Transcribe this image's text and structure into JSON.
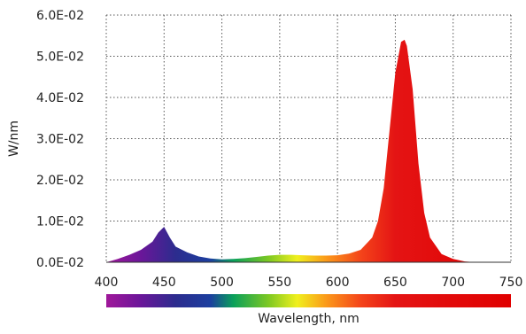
{
  "chart_data": {
    "type": "area",
    "title": "",
    "xlabel": "Wavelength, nm",
    "ylabel": "W/nm",
    "xlim": [
      400,
      750
    ],
    "ylim": [
      0.0,
      0.06
    ],
    "x_ticks": [
      400,
      450,
      500,
      550,
      600,
      650,
      700,
      750
    ],
    "x_tick_labels": [
      "400",
      "450",
      "500",
      "550",
      "600",
      "650",
      "700",
      "750"
    ],
    "y_ticks": [
      0.0,
      0.01,
      0.02,
      0.03,
      0.04,
      0.05,
      0.06
    ],
    "y_tick_labels": [
      "0.0E-02",
      "1.0E-02",
      "2.0E-02",
      "3.0E-02",
      "4.0E-02",
      "5.0E-02",
      "6.0E-02"
    ],
    "grid": true,
    "series": [
      {
        "x": [
          400,
          410,
          420,
          430,
          440,
          445,
          450,
          455,
          460,
          470,
          480,
          490,
          500,
          510,
          520,
          530,
          540,
          550,
          560,
          570,
          580,
          590,
          600,
          610,
          620,
          630,
          635,
          640,
          645,
          650,
          655,
          658,
          660,
          665,
          670,
          675,
          680,
          690,
          700,
          710,
          720
        ],
        "y": [
          0.0,
          0.0008,
          0.0018,
          0.003,
          0.005,
          0.0072,
          0.0086,
          0.006,
          0.0038,
          0.0024,
          0.0014,
          0.0009,
          0.0007,
          0.0008,
          0.001,
          0.0013,
          0.0016,
          0.0018,
          0.0018,
          0.0017,
          0.0016,
          0.0016,
          0.0017,
          0.0021,
          0.003,
          0.006,
          0.01,
          0.018,
          0.032,
          0.046,
          0.0535,
          0.054,
          0.0525,
          0.042,
          0.024,
          0.012,
          0.006,
          0.002,
          0.0008,
          0.0002,
          0.0
        ]
      }
    ],
    "spectrum_colors": {
      "400": "#a0189a",
      "430": "#6a1699",
      "460": "#2c2c8e",
      "490": "#1c3f9f",
      "510": "#0aa05a",
      "540": "#7cc823",
      "565": "#f0f01e",
      "590": "#fb9a1a",
      "620": "#f4441a",
      "650": "#e41414",
      "750": "#e00000"
    }
  }
}
